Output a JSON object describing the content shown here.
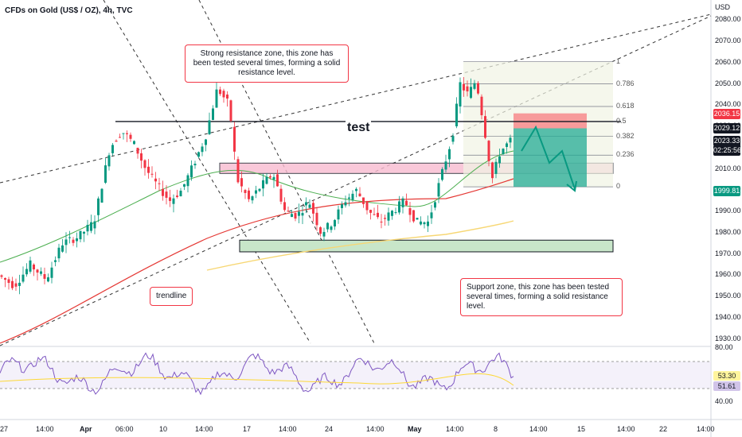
{
  "header": {
    "symbol": "CFDs on Gold (US$ / OZ), 4h, TVC"
  },
  "chart_data": {
    "type": "candlestick",
    "currency": "USD",
    "y_ticks": [
      2080,
      2070,
      2060,
      2050,
      2040,
      2030,
      2020,
      2010,
      2000,
      1990,
      1980,
      1970,
      1960,
      1950,
      1940,
      1930
    ],
    "ylim": [
      1928,
      2085
    ],
    "x_ticks": [
      "27",
      "14:00",
      "Apr",
      "06:00",
      "10",
      "14:00",
      "17",
      "14:00",
      "24",
      "14:00",
      "May",
      "14:00",
      "8",
      "14:00",
      "15",
      "14:00",
      "22",
      "14:00"
    ],
    "price_tags": [
      {
        "label": "2036.15",
        "value": 2036.15,
        "color": "#f23645"
      },
      {
        "label": "2029.12",
        "value": 2029.12,
        "color": "#131722"
      },
      {
        "label": "2023.33",
        "value": 2023.33,
        "color": "#131722"
      },
      {
        "label": "02:25:56",
        "value": 2018.9,
        "color": "#131722"
      },
      {
        "label": "1999.81",
        "value": 1999.81,
        "color": "#089981"
      }
    ],
    "fib_levels": [
      {
        "label": "1",
        "value": 2060.5
      },
      {
        "label": "0.786",
        "value": 2050.0
      },
      {
        "label": "0.618",
        "value": 2039.4
      },
      {
        "label": "0.5",
        "value": 2032.3
      },
      {
        "label": "0.382",
        "value": 2025.3
      },
      {
        "label": "0.236",
        "value": 2016.5
      },
      {
        "label": "0",
        "value": 2001.6
      }
    ],
    "horizontal_line": {
      "label": "test",
      "value": 2032.3
    },
    "resistance_zone": [
      2008.0,
      2010.5
    ],
    "support_zone": [
      1971.0,
      1976.5
    ],
    "position_box": {
      "entry": 2029.12,
      "target": 2001.6,
      "stop": 2036.15
    },
    "rsi": {
      "values": [
        53.3,
        51.61
      ],
      "ticks": [
        80,
        40
      ],
      "range": [
        30,
        70
      ]
    }
  },
  "annotations": {
    "resistance_note": "Strong resistance zone, this zone has been tested several times, forming a solid resistance level.",
    "support_note": "Support zone, this zone has been tested several times, forming a solid resistance level.",
    "trendline_note": "trendline"
  },
  "colors": {
    "bull": "#089981",
    "bear": "#f23645",
    "ma_red": "#e53935",
    "ma_green": "#4caf50",
    "ma_yellow": "#f7d774",
    "rsi": "#7e57c2"
  }
}
